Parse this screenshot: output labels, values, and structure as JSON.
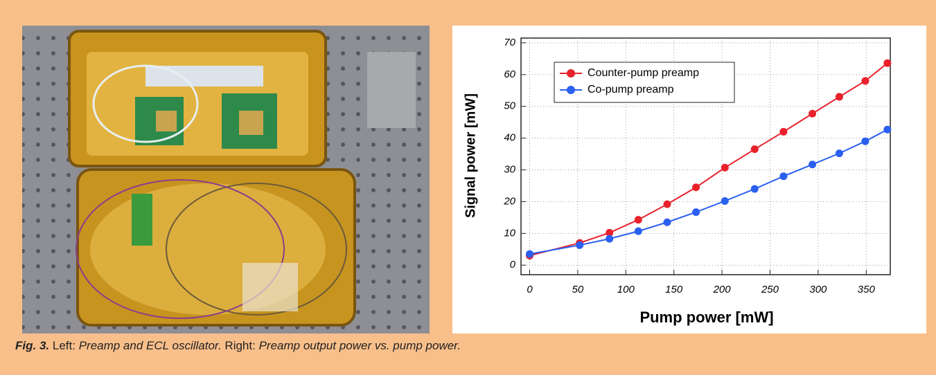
{
  "chart_data": {
    "type": "line",
    "x": [
      0,
      52,
      83,
      113,
      143,
      173,
      203,
      234,
      264,
      294,
      322,
      349,
      372
    ],
    "series": [
      {
        "name": "Counter-pump preamp",
        "color": "#e8212b",
        "values": [
          3,
          7,
          10.2,
          14.3,
          19.2,
          24.5,
          30.7,
          36.5,
          42,
          47.7,
          53,
          58,
          63.6
        ]
      },
      {
        "name": "Co-pump preamp",
        "color": "#2a5ff0",
        "values": [
          3.5,
          6.3,
          8.3,
          10.7,
          13.5,
          16.7,
          20.2,
          24,
          28,
          31.7,
          35.2,
          39,
          42.7
        ]
      }
    ],
    "x_label": "Pump power [mW]",
    "y_label": "Signal power [mW]",
    "xlim": [
      -9,
      375
    ],
    "ylim": [
      -3,
      71.5
    ],
    "xticks": [
      0,
      50,
      100,
      150,
      200,
      250,
      300,
      350
    ],
    "yticks": [
      0,
      10,
      20,
      30,
      40,
      50,
      60,
      70
    ],
    "grid": true,
    "legend": "upper left"
  },
  "caption": {
    "label": "Fig. 3.",
    "left": "Left:",
    "left_text": "Preamp and ECL oscillator.",
    "right": "Right:",
    "right_text": "Preamp output power vs. pump power."
  }
}
